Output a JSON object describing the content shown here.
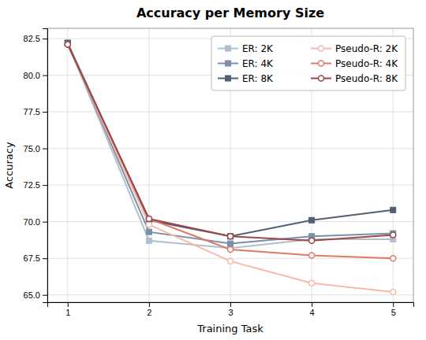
{
  "chart_data": {
    "type": "line",
    "title": "Accuracy per Memory Size",
    "xlabel": "Training Task",
    "ylabel": "Accuracy",
    "x": [
      1,
      2,
      3,
      4,
      5
    ],
    "series": [
      {
        "name": "ER: 2K",
        "color": "#b0bece",
        "marker": "square",
        "values": [
          82.2,
          68.7,
          68.2,
          68.8,
          68.8
        ]
      },
      {
        "name": "ER: 4K",
        "color": "#7a90a8",
        "marker": "square",
        "values": [
          82.2,
          69.3,
          68.5,
          69.0,
          69.2
        ]
      },
      {
        "name": "ER: 8K",
        "color": "#526070",
        "marker": "square",
        "values": [
          82.2,
          70.1,
          69.0,
          70.1,
          70.8
        ]
      },
      {
        "name": "Pseudo-R: 2K",
        "color": "#f8b8a8",
        "marker": "circle",
        "values": [
          82.1,
          69.8,
          67.3,
          65.8,
          65.2
        ]
      },
      {
        "name": "Pseudo-R: 4K",
        "color": "#e07868",
        "marker": "circle",
        "values": [
          82.1,
          70.2,
          68.1,
          67.7,
          67.5
        ]
      },
      {
        "name": "Pseudo-R: 8K",
        "color": "#9b4848",
        "marker": "circle",
        "values": [
          82.1,
          70.2,
          69.0,
          68.7,
          69.1
        ]
      }
    ],
    "xlim": [
      0.75,
      5.25
    ],
    "xticks": [
      1,
      2,
      3,
      4,
      5
    ],
    "ylim": [
      64.5,
      83.2
    ],
    "yticks": [
      {
        "value": 65.0,
        "label": "65.0"
      },
      67.5,
      {
        "value": 70.0,
        "label": "70.0"
      },
      72.5,
      {
        "value": 75.0,
        "label": "75.0"
      },
      77.5,
      {
        "value": 80.0,
        "label": "80.0"
      },
      82.5
    ],
    "grid": true,
    "legend": "upper right"
  }
}
